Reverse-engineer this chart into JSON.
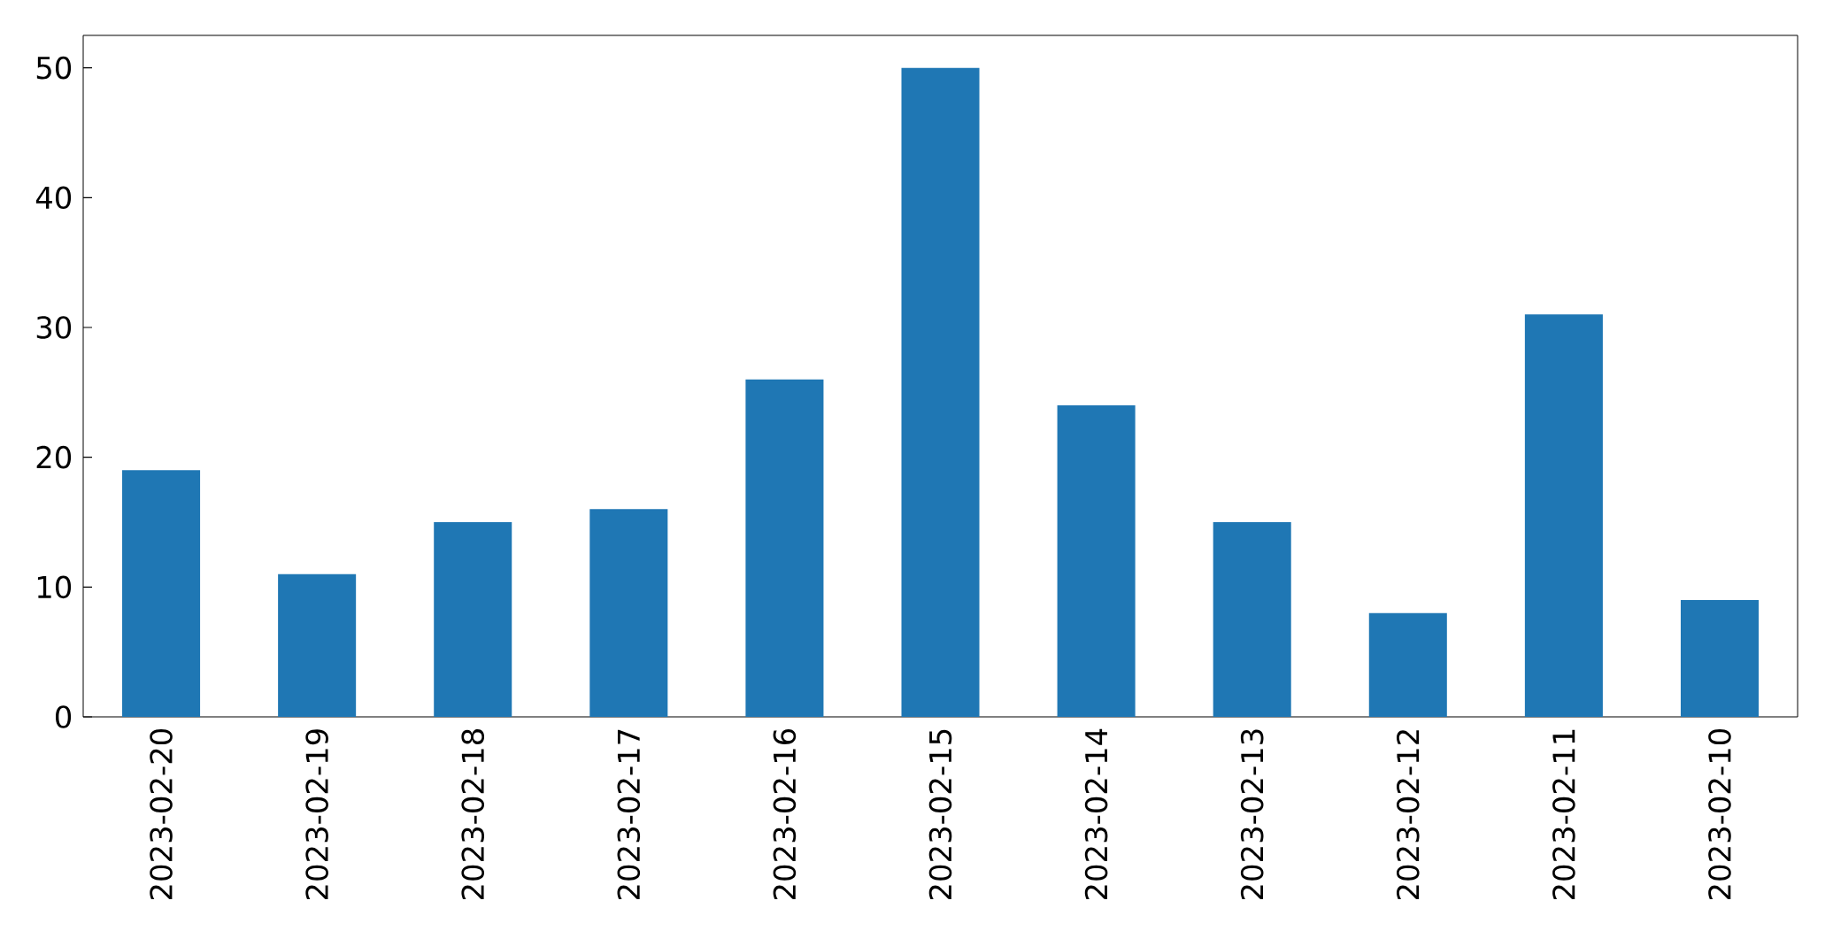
{
  "chart_data": {
    "type": "bar",
    "categories": [
      "2023-02-20",
      "2023-02-19",
      "2023-02-18",
      "2023-02-17",
      "2023-02-16",
      "2023-02-15",
      "2023-02-14",
      "2023-02-13",
      "2023-02-12",
      "2023-02-11",
      "2023-02-10"
    ],
    "values": [
      19,
      11,
      15,
      16,
      26,
      50,
      24,
      15,
      8,
      31,
      9
    ],
    "color": "#1f77b4",
    "ylim": [
      0,
      52.5
    ],
    "yticks": [
      0,
      10,
      20,
      30,
      40,
      50
    ]
  }
}
